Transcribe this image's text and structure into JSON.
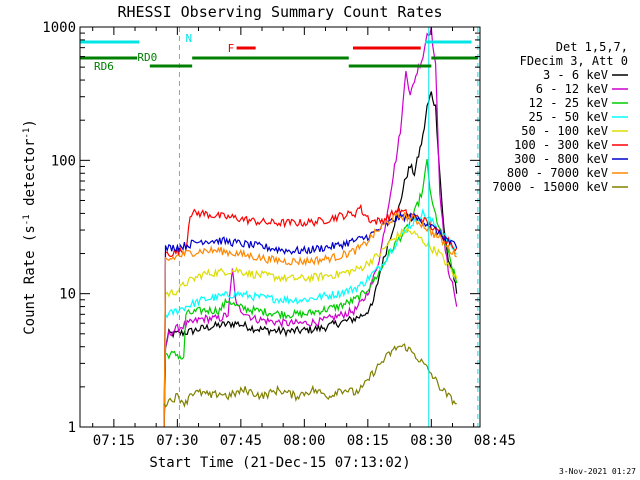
{
  "chart_data": {
    "type": "line",
    "title": "RHESSI Observing Summary Count Rates",
    "xlabel": "Start Time (21-Dec-15 07:13:02)",
    "ylabel_main": "Count Rate (s",
    "ylabel_sup1": "-1",
    "ylabel_mid": " detector",
    "ylabel_sup2": "-1",
    "ylabel_end": ")",
    "y_scale": "log",
    "ylim": [
      1,
      1000
    ],
    "xlim_minutes": [
      7.0,
      101.5
    ],
    "x_ticks": [
      {
        "label": "07:15",
        "t": 15
      },
      {
        "label": "07:30",
        "t": 30
      },
      {
        "label": "07:45",
        "t": 45
      },
      {
        "label": "08:00",
        "t": 60
      },
      {
        "label": "08:15",
        "t": 75
      },
      {
        "label": "08:30",
        "t": 90
      },
      {
        "label": "08:45",
        "t": 105
      }
    ],
    "y_ticks": [
      {
        "label": "1",
        "v": 1
      },
      {
        "label": "10",
        "v": 10
      },
      {
        "label": "100",
        "v": 100
      },
      {
        "label": "1000",
        "v": 1000
      }
    ],
    "legend_header": [
      "Det 1,5,7,",
      "FDecim 3, Att 0"
    ],
    "legend_position": "right",
    "series": [
      {
        "name": "3 - 6 keV",
        "color": "#000000",
        "points": [
          [
            26.9,
            1
          ],
          [
            27.2,
            4
          ],
          [
            28,
            5
          ],
          [
            30,
            5
          ],
          [
            33,
            5.2
          ],
          [
            36,
            5.5
          ],
          [
            40,
            5.8
          ],
          [
            44,
            6
          ],
          [
            48,
            5.5
          ],
          [
            52,
            5.3
          ],
          [
            56,
            5.2
          ],
          [
            60,
            5.3
          ],
          [
            64,
            5.5
          ],
          [
            68,
            6
          ],
          [
            72,
            6.5
          ],
          [
            74,
            7
          ],
          [
            76,
            8
          ],
          [
            78,
            15
          ],
          [
            80,
            25
          ],
          [
            82,
            40
          ],
          [
            84,
            75
          ],
          [
            85,
            90
          ],
          [
            86,
            80
          ],
          [
            88,
            150
          ],
          [
            89,
            250
          ],
          [
            90,
            320
          ],
          [
            91,
            250
          ],
          [
            92,
            80
          ],
          [
            93,
            30
          ],
          [
            94,
            18
          ],
          [
            95,
            15
          ],
          [
            96,
            10
          ]
        ]
      },
      {
        "name": "6 - 12 keV",
        "color": "#cc00cc",
        "points": [
          [
            26.9,
            1
          ],
          [
            27.2,
            4
          ],
          [
            28,
            5
          ],
          [
            30,
            5.5
          ],
          [
            33,
            6
          ],
          [
            36,
            6.5
          ],
          [
            40,
            6.5
          ],
          [
            42,
            7
          ],
          [
            43,
            15
          ],
          [
            44,
            8
          ],
          [
            48,
            6.5
          ],
          [
            52,
            6.2
          ],
          [
            56,
            6
          ],
          [
            60,
            6
          ],
          [
            64,
            6.2
          ],
          [
            68,
            6.8
          ],
          [
            72,
            7.5
          ],
          [
            74,
            9
          ],
          [
            76,
            12
          ],
          [
            78,
            20
          ],
          [
            80,
            50
          ],
          [
            82,
            120
          ],
          [
            83,
            200
          ],
          [
            84,
            500
          ],
          [
            85,
            300
          ],
          [
            86,
            400
          ],
          [
            87,
            500
          ],
          [
            88,
            600
          ],
          [
            89,
            900
          ],
          [
            90,
            950
          ],
          [
            91,
            500
          ],
          [
            92,
            60
          ],
          [
            93,
            25
          ],
          [
            94,
            15
          ],
          [
            95,
            12
          ],
          [
            96,
            8
          ]
        ]
      },
      {
        "name": "12 - 25 keV",
        "color": "#00cc00",
        "points": [
          [
            26.9,
            1
          ],
          [
            27.2,
            3.5
          ],
          [
            28,
            3.5
          ],
          [
            30,
            3.5
          ],
          [
            31.5,
            3.2
          ],
          [
            32,
            7
          ],
          [
            36,
            7.5
          ],
          [
            40,
            7.5
          ],
          [
            42,
            9
          ],
          [
            44,
            8
          ],
          [
            48,
            7.5
          ],
          [
            52,
            7.2
          ],
          [
            56,
            7
          ],
          [
            60,
            7
          ],
          [
            64,
            7.5
          ],
          [
            68,
            8
          ],
          [
            72,
            9
          ],
          [
            74,
            10
          ],
          [
            76,
            12
          ],
          [
            78,
            15
          ],
          [
            80,
            20
          ],
          [
            82,
            25
          ],
          [
            84,
            30
          ],
          [
            86,
            40
          ],
          [
            88,
            60
          ],
          [
            89,
            100
          ],
          [
            90,
            50
          ],
          [
            92,
            30
          ],
          [
            94,
            20
          ],
          [
            96,
            12
          ]
        ]
      },
      {
        "name": "25 - 50 keV",
        "color": "#00ffff",
        "points": [
          [
            26.9,
            1
          ],
          [
            27.2,
            7
          ],
          [
            28,
            7
          ],
          [
            30,
            7.5
          ],
          [
            32,
            8
          ],
          [
            36,
            9
          ],
          [
            40,
            9.5
          ],
          [
            44,
            10
          ],
          [
            48,
            9.5
          ],
          [
            52,
            9.2
          ],
          [
            56,
            9
          ],
          [
            60,
            9
          ],
          [
            64,
            9.5
          ],
          [
            68,
            10
          ],
          [
            72,
            11
          ],
          [
            74,
            12
          ],
          [
            76,
            14
          ],
          [
            78,
            16
          ],
          [
            80,
            20
          ],
          [
            82,
            25
          ],
          [
            84,
            30
          ],
          [
            86,
            35
          ],
          [
            88,
            40
          ],
          [
            90,
            35
          ],
          [
            92,
            30
          ],
          [
            94,
            25
          ],
          [
            96,
            20
          ]
        ]
      },
      {
        "name": "50 - 100 keV",
        "color": "#dddd00",
        "points": [
          [
            26.9,
            1
          ],
          [
            27.2,
            10
          ],
          [
            28,
            10
          ],
          [
            30,
            10.5
          ],
          [
            32,
            12
          ],
          [
            36,
            14
          ],
          [
            40,
            14.5
          ],
          [
            44,
            15
          ],
          [
            48,
            14
          ],
          [
            52,
            13.5
          ],
          [
            56,
            13
          ],
          [
            60,
            13
          ],
          [
            64,
            13.5
          ],
          [
            68,
            14
          ],
          [
            72,
            15
          ],
          [
            74,
            16
          ],
          [
            76,
            18
          ],
          [
            78,
            20
          ],
          [
            80,
            24
          ],
          [
            82,
            27
          ],
          [
            84,
            30
          ],
          [
            86,
            28
          ],
          [
            88,
            25
          ],
          [
            90,
            22
          ],
          [
            92,
            20
          ],
          [
            94,
            16
          ],
          [
            96,
            13
          ]
        ]
      },
      {
        "name": "100 - 300 keV",
        "color": "#ff0000",
        "points": [
          [
            26.9,
            1
          ],
          [
            27.2,
            20
          ],
          [
            28,
            20
          ],
          [
            30,
            20.5
          ],
          [
            32,
            21
          ],
          [
            33,
            40
          ],
          [
            36,
            40
          ],
          [
            40,
            38
          ],
          [
            44,
            37
          ],
          [
            48,
            35
          ],
          [
            52,
            34
          ],
          [
            56,
            34
          ],
          [
            60,
            34
          ],
          [
            64,
            35
          ],
          [
            68,
            38
          ],
          [
            72,
            40
          ],
          [
            73,
            45
          ],
          [
            74,
            40
          ],
          [
            76,
            35
          ],
          [
            78,
            35
          ],
          [
            80,
            38
          ],
          [
            82,
            42
          ],
          [
            84,
            40
          ],
          [
            86,
            38
          ],
          [
            88,
            36
          ],
          [
            90,
            32
          ],
          [
            92,
            28
          ],
          [
            94,
            25
          ],
          [
            96,
            22
          ]
        ]
      },
      {
        "name": "300 - 800 keV",
        "color": "#0000cc",
        "points": [
          [
            26.9,
            1
          ],
          [
            27.2,
            22
          ],
          [
            28,
            22
          ],
          [
            30,
            22.5
          ],
          [
            32,
            23
          ],
          [
            34,
            24
          ],
          [
            36,
            25
          ],
          [
            40,
            25
          ],
          [
            44,
            24
          ],
          [
            48,
            23
          ],
          [
            52,
            22
          ],
          [
            56,
            21
          ],
          [
            60,
            21
          ],
          [
            64,
            22
          ],
          [
            68,
            23
          ],
          [
            72,
            25
          ],
          [
            74,
            26
          ],
          [
            76,
            28
          ],
          [
            78,
            31
          ],
          [
            80,
            34
          ],
          [
            82,
            37
          ],
          [
            84,
            38
          ],
          [
            86,
            37
          ],
          [
            88,
            35
          ],
          [
            90,
            32
          ],
          [
            92,
            28
          ],
          [
            94,
            25
          ],
          [
            96,
            22
          ]
        ]
      },
      {
        "name": "800 - 7000 keV",
        "color": "#ff8800",
        "points": [
          [
            26.9,
            1
          ],
          [
            27.2,
            18
          ],
          [
            28,
            18
          ],
          [
            30,
            19
          ],
          [
            32,
            20
          ],
          [
            34,
            20.5
          ],
          [
            36,
            21
          ],
          [
            40,
            21
          ],
          [
            44,
            20
          ],
          [
            48,
            19
          ],
          [
            52,
            18
          ],
          [
            56,
            17.5
          ],
          [
            60,
            17.5
          ],
          [
            64,
            18
          ],
          [
            68,
            19
          ],
          [
            72,
            21
          ],
          [
            74,
            23
          ],
          [
            76,
            27
          ],
          [
            78,
            31
          ],
          [
            80,
            35
          ],
          [
            82,
            38
          ],
          [
            84,
            38
          ],
          [
            86,
            36
          ],
          [
            88,
            33
          ],
          [
            90,
            29
          ],
          [
            92,
            26
          ],
          [
            94,
            22
          ],
          [
            96,
            19
          ]
        ]
      },
      {
        "name": "7000 - 15000 keV",
        "color": "#808000",
        "points": [
          [
            26.9,
            1.5
          ],
          [
            30,
            1.7
          ],
          [
            32,
            1.5
          ],
          [
            33,
            1.8
          ],
          [
            36,
            1.8
          ],
          [
            38,
            1.7
          ],
          [
            40,
            1.8
          ],
          [
            42,
            1.7
          ],
          [
            44,
            1.8
          ],
          [
            46,
            1.9
          ],
          [
            48,
            1.8
          ],
          [
            50,
            1.7
          ],
          [
            52,
            1.8
          ],
          [
            54,
            1.9
          ],
          [
            56,
            1.8
          ],
          [
            58,
            1.7
          ],
          [
            60,
            1.8
          ],
          [
            62,
            1.9
          ],
          [
            64,
            1.8
          ],
          [
            66,
            1.7
          ],
          [
            68,
            1.9
          ],
          [
            70,
            1.9
          ],
          [
            72,
            1.8
          ],
          [
            74,
            2
          ],
          [
            76,
            2.5
          ],
          [
            78,
            3
          ],
          [
            80,
            3.5
          ],
          [
            82,
            4
          ],
          [
            84,
            4
          ],
          [
            86,
            3.5
          ],
          [
            88,
            3
          ],
          [
            90,
            2.5
          ],
          [
            92,
            2
          ],
          [
            94,
            1.7
          ],
          [
            96,
            1.5
          ]
        ]
      }
    ],
    "state_bars": [
      {
        "label": "N",
        "color": "#00e5e5",
        "row": 0,
        "segments": [
          [
            7.0,
            21.0
          ],
          [
            88.5,
            99.5
          ]
        ]
      },
      {
        "label": "F",
        "color": "#ee0000",
        "row": 1,
        "segments": [
          [
            44.0,
            48.5
          ],
          [
            71.5,
            87.5
          ]
        ]
      },
      {
        "label": "RD0",
        "color": "#008000",
        "row": 2,
        "segments": [
          [
            7.0,
            20.5
          ],
          [
            33.5,
            70.5
          ],
          [
            90.0,
            101.0
          ]
        ]
      },
      {
        "label": "RD6",
        "color": "#008000",
        "row": 3,
        "segments": [
          [
            23.5,
            33.5
          ],
          [
            70.5,
            90.0
          ]
        ]
      }
    ],
    "vertical_markers": [
      {
        "color": "#00e5e5",
        "style": "solid",
        "t": 7.0
      },
      {
        "color": "#00e5e5",
        "style": "dashed",
        "t": 30.5
      },
      {
        "color": "#00e5e5",
        "style": "solid",
        "t": 89.4
      },
      {
        "color": "#00e5e5",
        "style": "dashed",
        "t": 101.0
      }
    ]
  },
  "footer_timestamp": "3-Nov-2021 01:27"
}
